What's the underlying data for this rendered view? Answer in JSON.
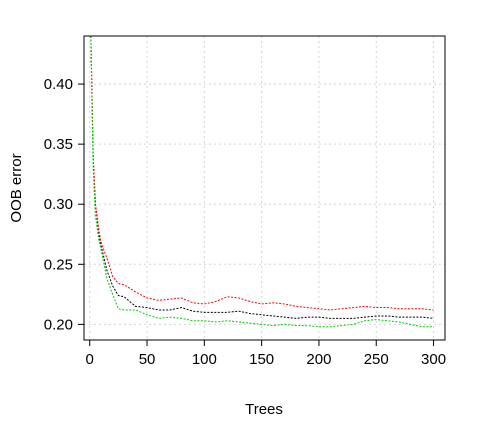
{
  "chart_data": {
    "type": "line",
    "title": "",
    "xlabel": "Trees",
    "ylabel": "OOB error",
    "xlim": [
      -5,
      310
    ],
    "ylim": [
      0.187,
      0.44
    ],
    "x_ticks": [
      0,
      50,
      100,
      150,
      200,
      250,
      300
    ],
    "y_ticks": [
      0.2,
      0.25,
      0.3,
      0.35,
      0.4
    ],
    "x_tick_labels": [
      "0",
      "50",
      "100",
      "150",
      "200",
      "250",
      "300"
    ],
    "y_tick_labels": [
      "0.20",
      "0.25",
      "0.30",
      "0.35",
      "0.40"
    ],
    "grid": true,
    "legend": "none",
    "series": [
      {
        "color": "#000000",
        "x": [
          1,
          2,
          3,
          5,
          8,
          10,
          15,
          20,
          25,
          30,
          40,
          50,
          60,
          70,
          80,
          90,
          100,
          110,
          120,
          130,
          140,
          150,
          160,
          170,
          180,
          190,
          200,
          210,
          220,
          230,
          240,
          250,
          260,
          270,
          280,
          290,
          300
        ],
        "y": [
          0.44,
          0.39,
          0.34,
          0.3,
          0.275,
          0.265,
          0.245,
          0.232,
          0.224,
          0.223,
          0.215,
          0.214,
          0.212,
          0.212,
          0.214,
          0.211,
          0.21,
          0.21,
          0.21,
          0.211,
          0.209,
          0.208,
          0.207,
          0.206,
          0.205,
          0.206,
          0.206,
          0.205,
          0.205,
          0.205,
          0.206,
          0.207,
          0.207,
          0.206,
          0.206,
          0.206,
          0.205
        ]
      },
      {
        "color": "#ff0000",
        "x": [
          1,
          2,
          3,
          5,
          8,
          10,
          15,
          20,
          25,
          30,
          40,
          50,
          60,
          70,
          80,
          90,
          100,
          110,
          120,
          130,
          140,
          150,
          160,
          170,
          180,
          190,
          200,
          210,
          220,
          230,
          240,
          250,
          260,
          270,
          280,
          290,
          300
        ],
        "y": [
          0.44,
          0.39,
          0.34,
          0.3,
          0.278,
          0.268,
          0.255,
          0.24,
          0.234,
          0.233,
          0.227,
          0.222,
          0.22,
          0.221,
          0.222,
          0.218,
          0.217,
          0.219,
          0.223,
          0.222,
          0.219,
          0.217,
          0.218,
          0.217,
          0.215,
          0.214,
          0.213,
          0.212,
          0.213,
          0.214,
          0.215,
          0.214,
          0.214,
          0.213,
          0.213,
          0.213,
          0.212
        ]
      },
      {
        "color": "#00cc00",
        "x": [
          1,
          2,
          3,
          5,
          8,
          10,
          15,
          20,
          25,
          30,
          40,
          50,
          60,
          70,
          80,
          90,
          100,
          110,
          120,
          130,
          140,
          150,
          160,
          170,
          180,
          190,
          200,
          210,
          220,
          230,
          240,
          250,
          260,
          270,
          280,
          290,
          300
        ],
        "y": [
          0.44,
          0.38,
          0.33,
          0.29,
          0.27,
          0.262,
          0.238,
          0.225,
          0.213,
          0.212,
          0.212,
          0.208,
          0.205,
          0.206,
          0.205,
          0.203,
          0.203,
          0.202,
          0.203,
          0.202,
          0.201,
          0.2,
          0.199,
          0.2,
          0.199,
          0.199,
          0.198,
          0.198,
          0.199,
          0.2,
          0.203,
          0.204,
          0.203,
          0.202,
          0.2,
          0.198,
          0.198
        ]
      }
    ]
  }
}
